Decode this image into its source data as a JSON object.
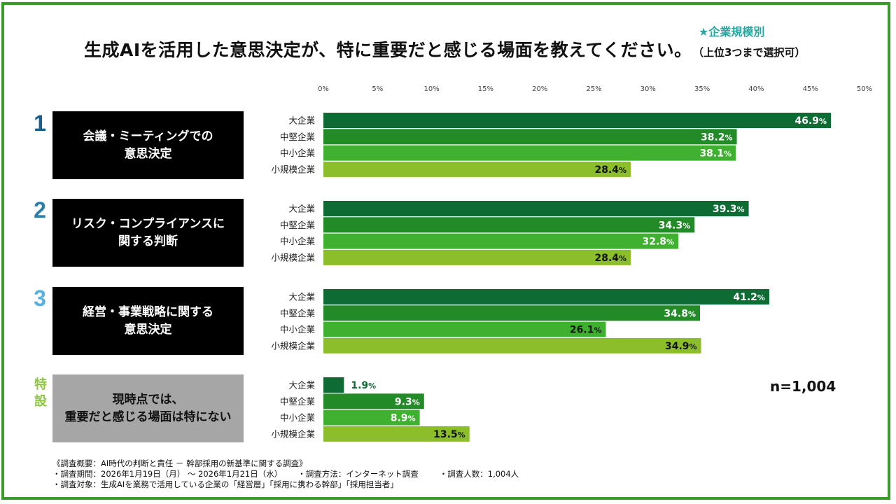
{
  "header": {
    "title": "生成AIを活用した意思決定が、特に重要だと感じる場面を教えてください。",
    "title_note": "（上位3つまで選択可）",
    "subtitle": "★企業規模別"
  },
  "n_label": "n=1,004",
  "colors": {
    "frame": "#3a9a2a",
    "subtitle": "#2aa6a0",
    "rank1": "#1a5e8c",
    "rank2": "#2a7fa8",
    "rank3": "#56b0e0",
    "special": "#8cc63e",
    "series": [
      "#0e6b34",
      "#238a28",
      "#40b030",
      "#8cbe2c"
    ]
  },
  "categories": [
    {
      "rank": "1",
      "label": "会議・ミーティングでの\n意思決定"
    },
    {
      "rank": "2",
      "label": "リスク・コンプライアンスに\n関する判断"
    },
    {
      "rank": "3",
      "label": "経営・事業戦略に関する\n意思決定"
    },
    {
      "rank": "特\n設",
      "label": "現時点では、\n重要だと感じる場面は特にない"
    }
  ],
  "chart_data": {
    "type": "bar",
    "orientation": "horizontal",
    "x_ticks": [
      "0%",
      "5%",
      "10%",
      "15%",
      "20%",
      "25%",
      "30%",
      "35%",
      "40%",
      "45%",
      "50%"
    ],
    "xlim": [
      0,
      50
    ],
    "groups": [
      "大企業",
      "中堅企業",
      "中小企業",
      "小規模企業"
    ],
    "categories": [
      "会議・ミーティングでの意思決定",
      "リスク・コンプライアンスに関する判断",
      "経営・事業戦略に関する意思決定",
      "現時点では、重要だと感じる場面は特にない"
    ],
    "series": [
      {
        "name": "大企業",
        "values": [
          46.9,
          39.3,
          41.2,
          1.9
        ]
      },
      {
        "name": "中堅企業",
        "values": [
          38.2,
          34.3,
          34.8,
          9.3
        ]
      },
      {
        "name": "中小企業",
        "values": [
          38.1,
          32.8,
          26.1,
          8.9
        ]
      },
      {
        "name": "小規模企業",
        "values": [
          28.4,
          28.4,
          34.9,
          13.5
        ]
      }
    ],
    "value_labels": [
      [
        "46.9",
        "38.2",
        "38.1",
        "28.4"
      ],
      [
        "39.3",
        "34.3",
        "32.8",
        "28.4"
      ],
      [
        "41.2",
        "34.8",
        "26.1",
        "34.9"
      ],
      [
        "1.9",
        "9.3",
        "8.9",
        "13.5"
      ]
    ],
    "value_suffix": "%",
    "grid": false
  },
  "notes": {
    "line1": "《調査概要：AI時代の判断と責任 － 幹部採用の新基準に関する調査》",
    "line2a": "・調査期間：2026年1月19日（月） ～ 2026年1月21日（水）",
    "line2b": "・調査方法：インターネット調査",
    "line2c": "・調査人数：1,004人",
    "line3": "・調査対象：生成AIを業務で活用している企業の「経営層」「採用に携わる幹部」「採用担当者」"
  }
}
